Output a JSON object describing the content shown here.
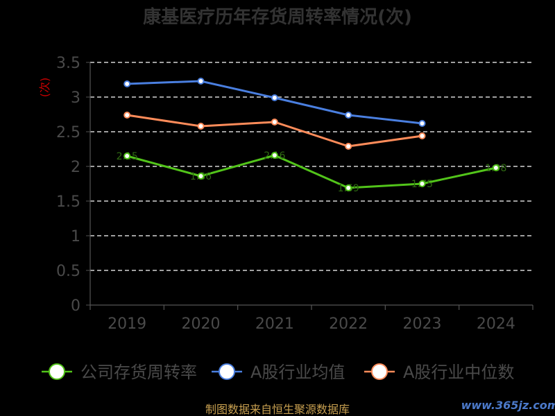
{
  "chart_data": {
    "type": "line",
    "title": "康基医疗历年存货周转率情况(次)",
    "ylabel": "(次)",
    "categories": [
      "2019",
      "2020",
      "2021",
      "2022",
      "2023",
      "2024"
    ],
    "ylim": [
      0,
      3.5
    ],
    "yticks": [
      "0",
      "0.5",
      "1",
      "1.5",
      "2",
      "2.5",
      "3",
      "3.5"
    ],
    "grid": true,
    "legend_position": "bottom",
    "series": [
      {
        "name": "公司存货周转率",
        "color": "#52c41a",
        "values": [
          2.15,
          1.86,
          2.16,
          1.69,
          1.75,
          1.98
        ],
        "labels": [
          "2.15",
          "1.86",
          "2.16",
          "1.69",
          "1.75",
          "1.98"
        ]
      },
      {
        "name": "A股行业均值",
        "color": "#4a7fe0",
        "values": [
          3.19,
          3.23,
          2.99,
          2.74,
          2.62,
          null
        ]
      },
      {
        "name": "A股行业中位数",
        "color": "#ff8c5a",
        "values": [
          2.74,
          2.58,
          2.64,
          2.29,
          2.44,
          null
        ]
      }
    ]
  },
  "footer": {
    "source": "制图数据来自恒生聚源数据库",
    "watermark": "www.365jz.com"
  }
}
